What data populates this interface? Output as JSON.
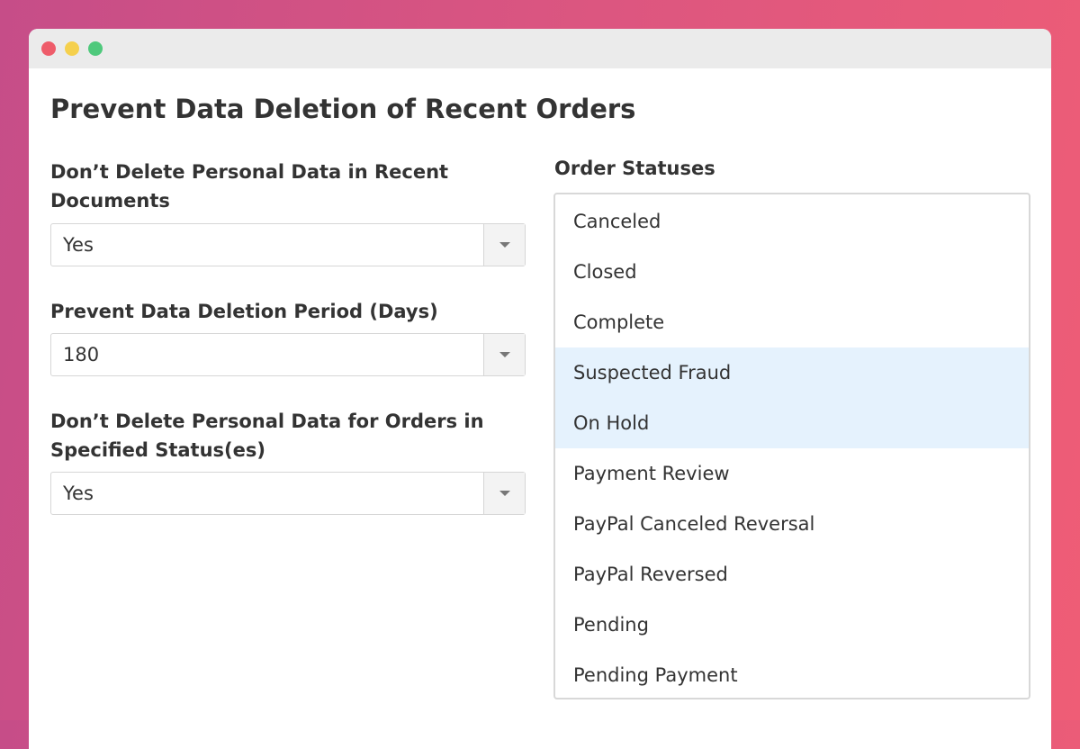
{
  "window": {
    "controls": [
      {
        "name": "close",
        "color": "#ee5c6a"
      },
      {
        "name": "minimize",
        "color": "#f5d04d"
      },
      {
        "name": "maximize",
        "color": "#4fc97c"
      }
    ]
  },
  "page_title": "Prevent Data Deletion of Recent Orders",
  "fields": [
    {
      "label": "Don’t Delete Personal Data in Recent Documents",
      "value": "Yes"
    },
    {
      "label": "Prevent Data Deletion Period (Days)",
      "value": "180"
    },
    {
      "label": "Don’t Delete Personal Data for Orders in Specified Status(es)",
      "value": "Yes"
    }
  ],
  "order_statuses": {
    "label": "Order Statuses",
    "options": [
      {
        "label": "Canceled",
        "selected": false
      },
      {
        "label": "Closed",
        "selected": false
      },
      {
        "label": "Complete",
        "selected": false
      },
      {
        "label": "Suspected Fraud",
        "selected": true
      },
      {
        "label": "On Hold",
        "selected": true
      },
      {
        "label": "Payment Review",
        "selected": false
      },
      {
        "label": "PayPal Canceled Reversal",
        "selected": false
      },
      {
        "label": "PayPal Reversed",
        "selected": false
      },
      {
        "label": "Pending",
        "selected": false
      },
      {
        "label": "Pending Payment",
        "selected": false
      }
    ]
  }
}
